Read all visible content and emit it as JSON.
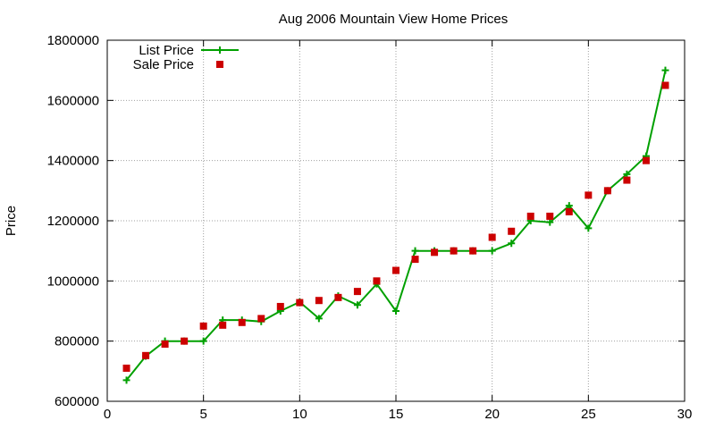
{
  "chart_data": {
    "type": "line",
    "title": "Aug 2006 Mountain View Home Prices",
    "xlabel": "",
    "ylabel": "Price",
    "xlim": [
      0,
      30
    ],
    "ylim": [
      600000,
      1800000
    ],
    "xticks": [
      0,
      5,
      10,
      15,
      20,
      25,
      30
    ],
    "yticks": [
      600000,
      800000,
      1000000,
      1200000,
      1400000,
      1600000,
      1800000
    ],
    "grid": true,
    "legend_position": "top-left",
    "series": [
      {
        "name": "List Price",
        "style": "line+plus",
        "color": "#00a000",
        "x": [
          1,
          2,
          3,
          4,
          5,
          6,
          7,
          8,
          9,
          10,
          11,
          12,
          13,
          14,
          15,
          16,
          17,
          18,
          19,
          20,
          21,
          22,
          23,
          24,
          25,
          26,
          27,
          28,
          29
        ],
        "y": [
          670000,
          750000,
          800000,
          800000,
          800000,
          870000,
          870000,
          865000,
          900000,
          930000,
          875000,
          950000,
          920000,
          990000,
          900000,
          1100000,
          1100000,
          1100000,
          1100000,
          1100000,
          1125000,
          1200000,
          1195000,
          1250000,
          1175000,
          1300000,
          1355000,
          1415000,
          1700000
        ]
      },
      {
        "name": "Sale Price",
        "style": "square",
        "color": "#cc0000",
        "x": [
          1,
          2,
          3,
          4,
          5,
          6,
          7,
          8,
          9,
          10,
          11,
          12,
          13,
          14,
          15,
          16,
          17,
          18,
          19,
          20,
          21,
          22,
          23,
          24,
          25,
          26,
          27,
          28,
          29
        ],
        "y": [
          710000,
          752000,
          790000,
          800000,
          850000,
          853000,
          862000,
          875000,
          915000,
          928000,
          935000,
          945000,
          965000,
          1000000,
          1035000,
          1072000,
          1095000,
          1100000,
          1100000,
          1145000,
          1165000,
          1215000,
          1215000,
          1230000,
          1285000,
          1300000,
          1335000,
          1400000,
          1650000
        ]
      }
    ]
  }
}
